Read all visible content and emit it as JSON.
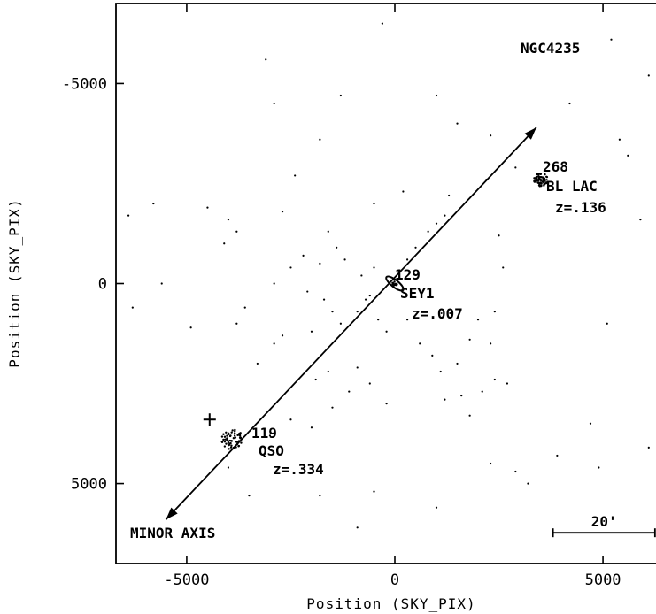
{
  "chart_data": {
    "type": "scatter",
    "title": "NGC4235",
    "xlabel": "Position (SKY_PIX)",
    "ylabel": "Position (SKY_PIX)",
    "xlim": [
      -6700,
      6700
    ],
    "ylim": [
      -7000,
      7000
    ],
    "y_inverted": true,
    "grid": false,
    "x_ticks": [
      {
        "value": -5000,
        "label": "-5000"
      },
      {
        "value": 0,
        "label": "0"
      },
      {
        "value": 5000,
        "label": "5000"
      }
    ],
    "y_ticks": [
      {
        "value": -5000,
        "label": "-5000"
      },
      {
        "value": 0,
        "label": "0"
      },
      {
        "value": 5000,
        "label": "5000"
      }
    ],
    "arrow": {
      "label": "MINOR AXIS",
      "from": [
        -5500,
        5900
      ],
      "to": [
        3400,
        -3900
      ]
    },
    "sources": [
      {
        "id": "268",
        "name": "BL LAC",
        "redshift": "z=.136",
        "x": 3500,
        "y": -2600,
        "spread": 170,
        "count": 70
      },
      {
        "id": "129",
        "name": "SEY1",
        "redshift": "z=.007",
        "x": 0,
        "y": 0,
        "spread": 60,
        "count": 12
      },
      {
        "id": "119",
        "name": "QSO",
        "redshift": "z=.334",
        "x": -3900,
        "y": 3900,
        "spread": 260,
        "count": 60
      }
    ],
    "cross_marker": {
      "x": -4450,
      "y": 3400
    },
    "scale_bar": {
      "label": "20'",
      "x_start": 3800,
      "x_end": 6250,
      "y": 6230
    },
    "field_points": [
      [
        -5600,
        0
      ],
      [
        -6300,
        600
      ],
      [
        -5800,
        -2000
      ],
      [
        -4500,
        -1900
      ],
      [
        -4000,
        -1600
      ],
      [
        -3800,
        -1300
      ],
      [
        -4100,
        -1000
      ],
      [
        -2900,
        0
      ],
      [
        -2500,
        -400
      ],
      [
        -2200,
        -700
      ],
      [
        -1800,
        -500
      ],
      [
        -1600,
        -1300
      ],
      [
        -1400,
        -900
      ],
      [
        -1200,
        -600
      ],
      [
        -800,
        -200
      ],
      [
        -600,
        300
      ],
      [
        -500,
        -400
      ],
      [
        -2100,
        200
      ],
      [
        -1700,
        400
      ],
      [
        -1500,
        700
      ],
      [
        -2700,
        1300
      ],
      [
        -2900,
        1500
      ],
      [
        -2000,
        1200
      ],
      [
        -1300,
        1000
      ],
      [
        -900,
        700
      ],
      [
        -700,
        400
      ],
      [
        -400,
        900
      ],
      [
        -200,
        1200
      ],
      [
        300,
        -600
      ],
      [
        500,
        -900
      ],
      [
        800,
        -1300
      ],
      [
        1000,
        -1500
      ],
      [
        1200,
        -1700
      ],
      [
        300,
        900
      ],
      [
        600,
        1500
      ],
      [
        900,
        1800
      ],
      [
        1100,
        2200
      ],
      [
        1500,
        2000
      ],
      [
        1800,
        1400
      ],
      [
        2000,
        900
      ],
      [
        2400,
        700
      ],
      [
        2600,
        -400
      ],
      [
        2500,
        -1200
      ],
      [
        2300,
        1500
      ],
      [
        2400,
        2400
      ],
      [
        2100,
        2700
      ],
      [
        2700,
        2500
      ],
      [
        1600,
        2800
      ],
      [
        1200,
        2900
      ],
      [
        -900,
        2100
      ],
      [
        -600,
        2500
      ],
      [
        -200,
        3000
      ],
      [
        -1500,
        3100
      ],
      [
        -2000,
        3600
      ],
      [
        -2500,
        3400
      ],
      [
        -3000,
        3800
      ],
      [
        -1100,
        2700
      ],
      [
        -3800,
        1000
      ],
      [
        -3600,
        600
      ],
      [
        -4900,
        1100
      ],
      [
        -3300,
        2000
      ],
      [
        -1900,
        2400
      ],
      [
        -1600,
        2200
      ],
      [
        2300,
        -3700
      ],
      [
        2900,
        -2900
      ],
      [
        2200,
        -2600
      ],
      [
        1000,
        -4700
      ],
      [
        -500,
        -2000
      ],
      [
        200,
        -2300
      ],
      [
        1300,
        -2200
      ],
      [
        1500,
        -4000
      ],
      [
        -2900,
        -4500
      ],
      [
        -1300,
        -4700
      ],
      [
        -3100,
        -5600
      ],
      [
        -2400,
        -2700
      ],
      [
        2300,
        4500
      ],
      [
        2900,
        4700
      ],
      [
        3200,
        5000
      ],
      [
        1000,
        5600
      ],
      [
        -500,
        5200
      ],
      [
        -1800,
        5300
      ],
      [
        -3500,
        5300
      ],
      [
        -4000,
        4600
      ],
      [
        -900,
        6100
      ],
      [
        4700,
        3500
      ],
      [
        6100,
        -5200
      ],
      [
        5200,
        -6100
      ],
      [
        4200,
        -4500
      ],
      [
        5600,
        -3200
      ],
      [
        5900,
        -1600
      ],
      [
        6300,
        -2100
      ],
      [
        5400,
        -3600
      ],
      [
        6100,
        4100
      ],
      [
        -300,
        -6500
      ],
      [
        -6400,
        -1700
      ],
      [
        5100,
        1000
      ],
      [
        4900,
        4600
      ],
      [
        3900,
        4300
      ],
      [
        1800,
        3300
      ],
      [
        -1800,
        -3600
      ],
      [
        -2700,
        -1800
      ]
    ]
  }
}
